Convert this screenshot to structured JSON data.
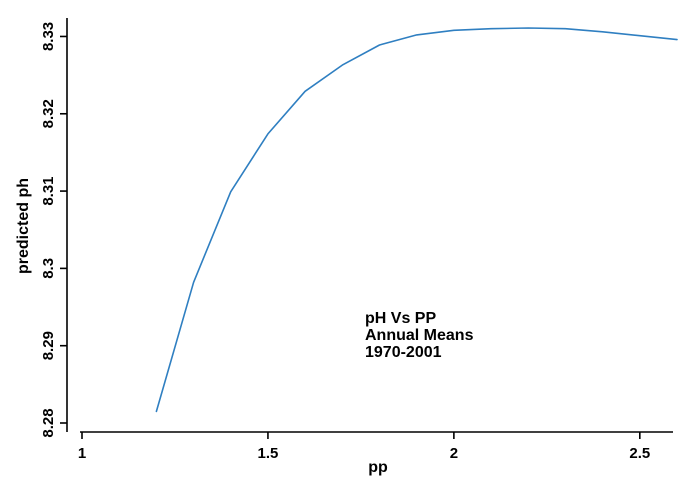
{
  "chart_data": {
    "type": "line",
    "xlabel": "pp",
    "ylabel": "predicted ph",
    "xlim": [
      1,
      2.6
    ],
    "ylim": [
      8.28,
      8.332
    ],
    "xticks": [
      1,
      1.5,
      2,
      2.5
    ],
    "xtick_labels": [
      "1",
      "1.5",
      "2",
      "2.5"
    ],
    "yticks": [
      8.28,
      8.29,
      8.3,
      8.31,
      8.32,
      8.33
    ],
    "ytick_labels": [
      "8.28",
      "8.29",
      "8.3",
      "8.31",
      "8.32",
      "8.33"
    ],
    "grid": false,
    "color": "#2f7fc1",
    "annotation": [
      "pH Vs PP",
      "Annual Means",
      "1970-2001"
    ],
    "series": [
      {
        "x": [
          1.2,
          1.3,
          1.4,
          1.5,
          1.6,
          1.7,
          1.8,
          1.9,
          2.0,
          2.1,
          2.2,
          2.3,
          2.4,
          2.5,
          2.6
        ],
        "y": [
          8.2815,
          8.2982,
          8.3099,
          8.3174,
          8.3229,
          8.3263,
          8.3289,
          8.3302,
          8.3308,
          8.331,
          8.3311,
          8.331,
          8.3306,
          8.3301,
          8.3296
        ]
      }
    ]
  }
}
